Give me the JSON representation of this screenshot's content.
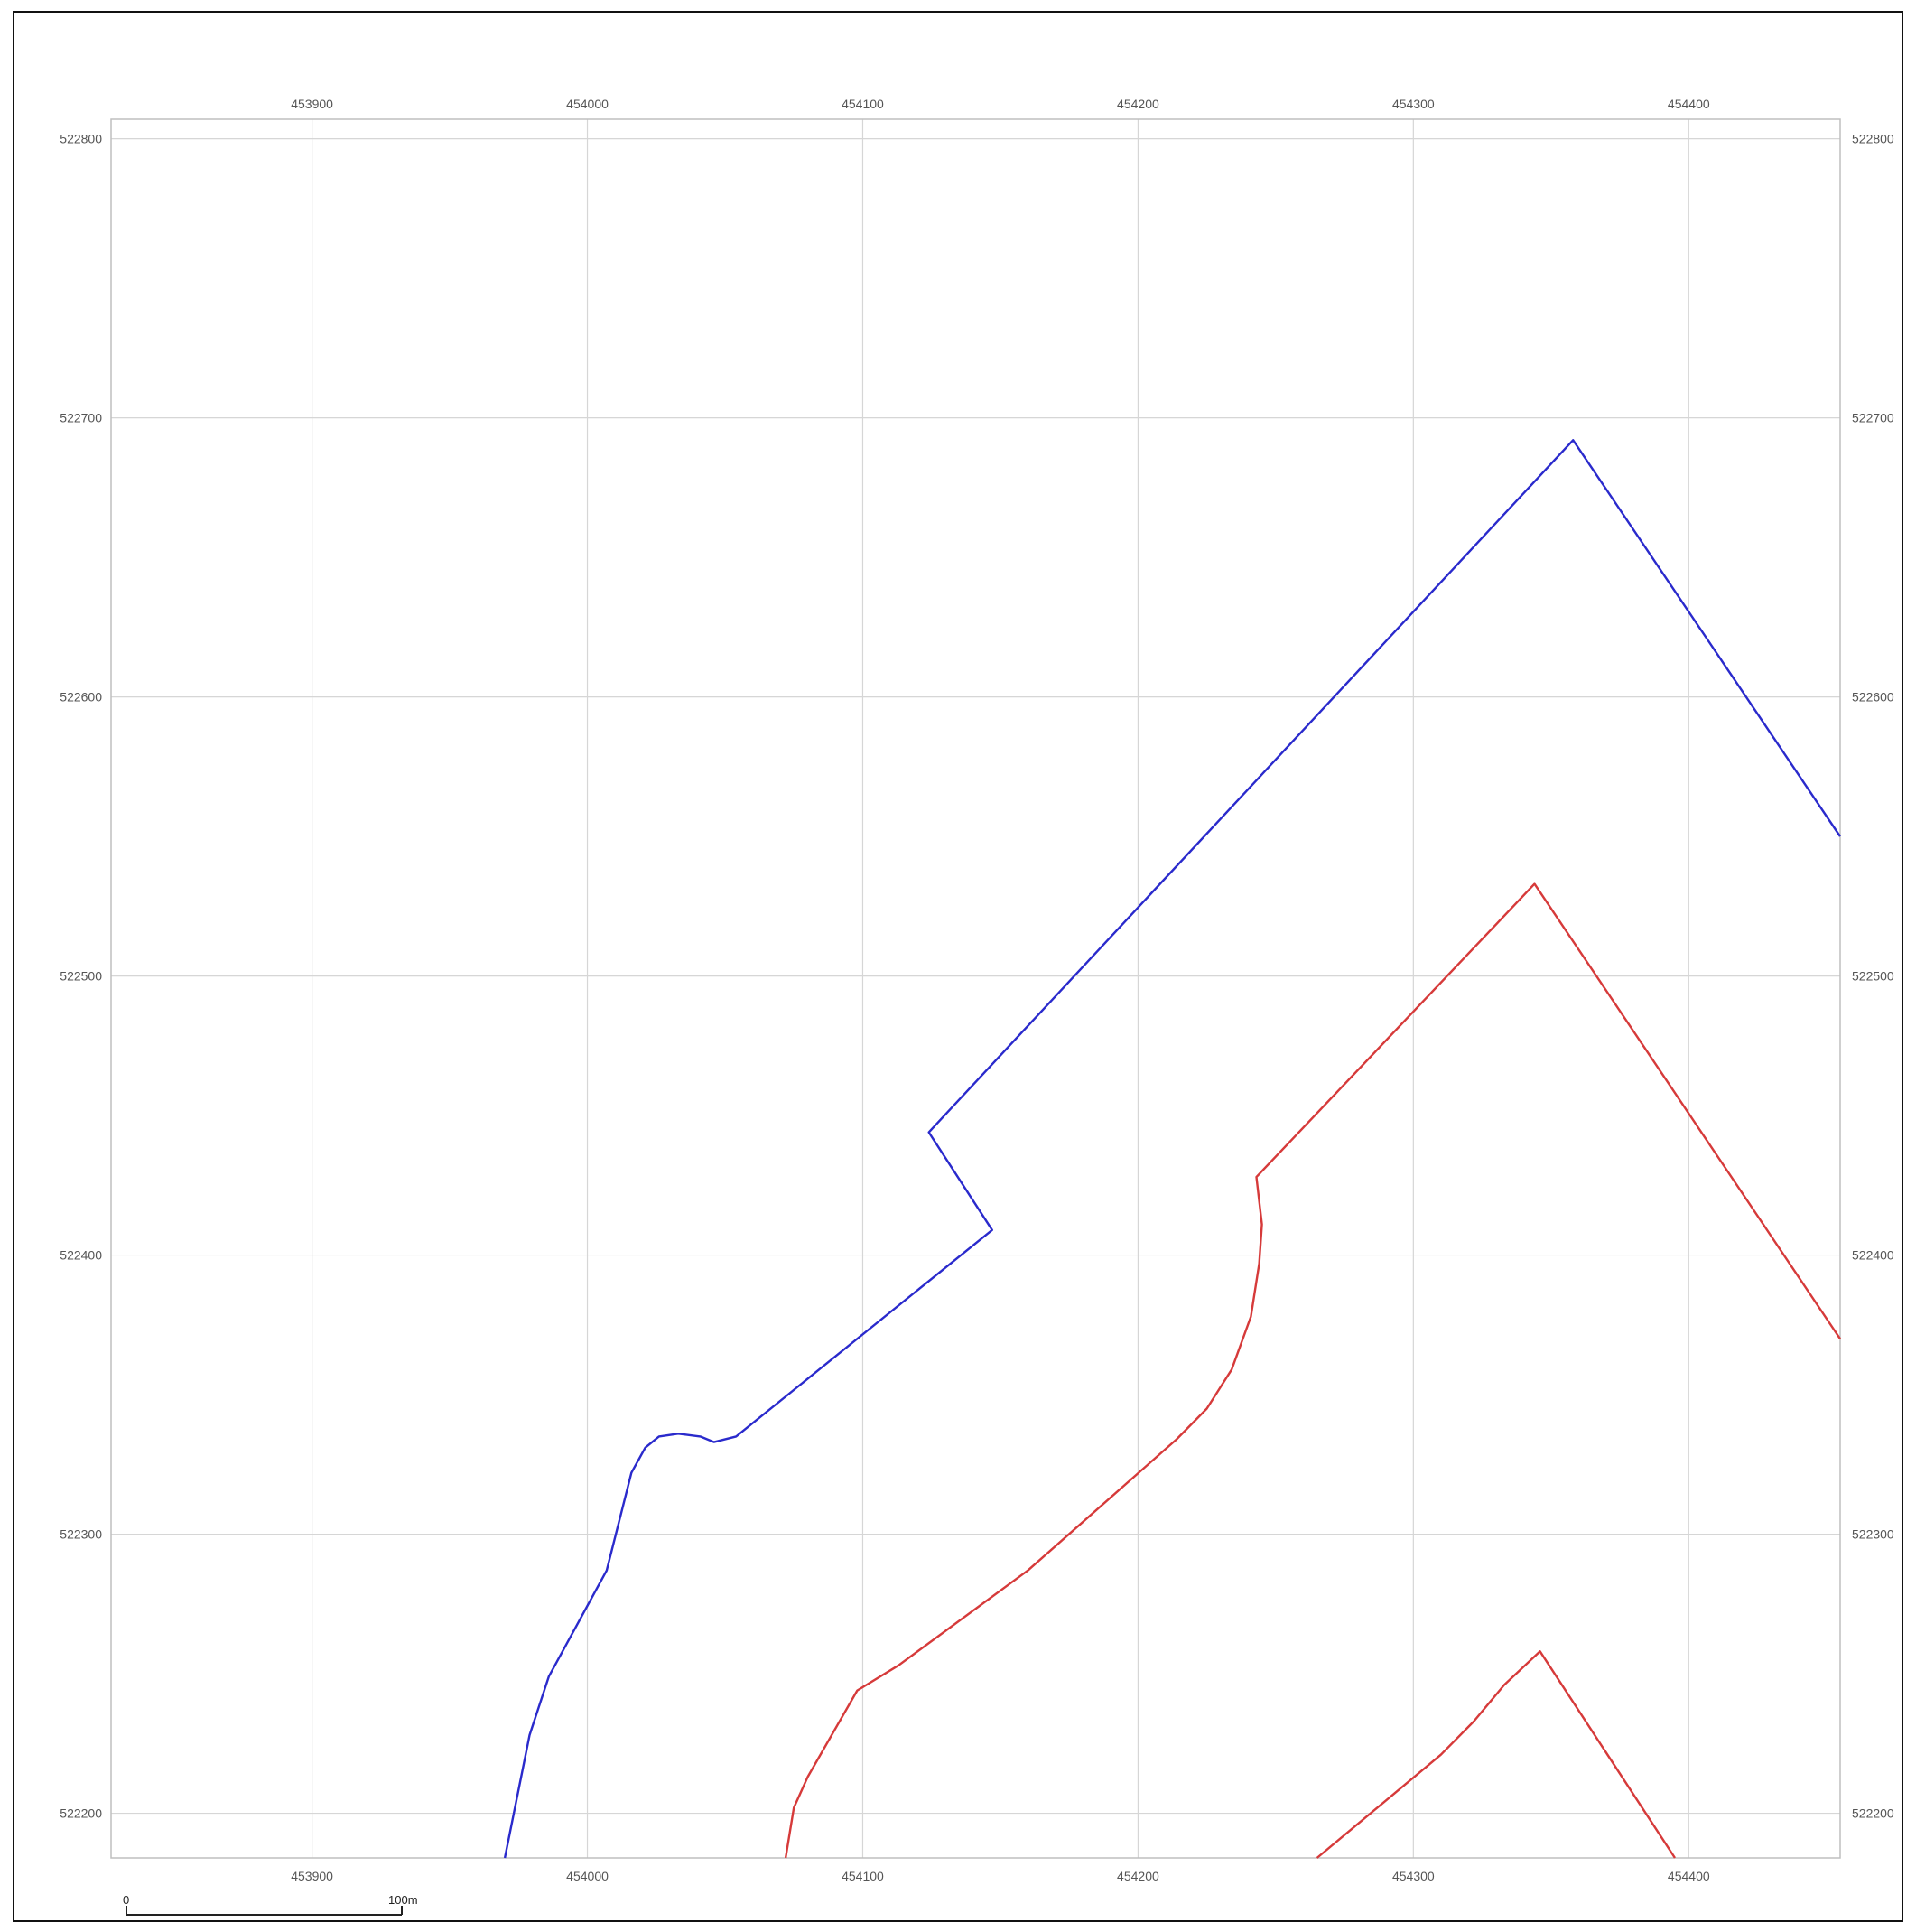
{
  "map": {
    "x_range": [
      453827,
      454455
    ],
    "y_range": [
      522184,
      522807
    ],
    "x_ticks": [
      453900,
      454000,
      454100,
      454200,
      454300,
      454400
    ],
    "y_ticks": [
      522800,
      522700,
      522600,
      522500,
      522400,
      522300,
      522200
    ],
    "grid": true,
    "scale_bar": {
      "start_label": "0",
      "end_label": "100m",
      "length_m": 100
    },
    "colors": {
      "blue_line": "#2a2acc",
      "red_line": "#d63a3a",
      "grid": "#d6d6d6"
    },
    "lines": [
      {
        "id": "blue-boundary",
        "color": "#2a2acc",
        "points": [
          [
            453970,
            522184
          ],
          [
            453979,
            522228
          ],
          [
            453986,
            522249
          ],
          [
            454007,
            522287
          ],
          [
            454016,
            522322
          ],
          [
            454021,
            522331
          ],
          [
            454026,
            522335
          ],
          [
            454033,
            522336
          ],
          [
            454041,
            522335
          ],
          [
            454046,
            522333
          ],
          [
            454054,
            522335
          ],
          [
            454147,
            522409
          ],
          [
            454124,
            522444
          ],
          [
            454358,
            522692
          ],
          [
            454455,
            522550
          ]
        ]
      },
      {
        "id": "red-boundary-1",
        "color": "#d63a3a",
        "points": [
          [
            454072,
            522184
          ],
          [
            454075,
            522202
          ],
          [
            454080,
            522213
          ],
          [
            454098,
            522244
          ],
          [
            454113,
            522253
          ],
          [
            454160,
            522287
          ],
          [
            454214,
            522334
          ],
          [
            454225,
            522345
          ],
          [
            454234,
            522359
          ],
          [
            454241,
            522378
          ],
          [
            454244,
            522397
          ],
          [
            454245,
            522411
          ],
          [
            454243,
            522428
          ],
          [
            454344,
            522533
          ],
          [
            454455,
            522370
          ]
        ]
      },
      {
        "id": "red-boundary-2",
        "color": "#d63a3a",
        "points": [
          [
            454265,
            522184
          ],
          [
            454310,
            522221
          ],
          [
            454322,
            522233
          ],
          [
            454333,
            522246
          ],
          [
            454346,
            522258
          ],
          [
            454395,
            522184
          ]
        ]
      }
    ]
  }
}
